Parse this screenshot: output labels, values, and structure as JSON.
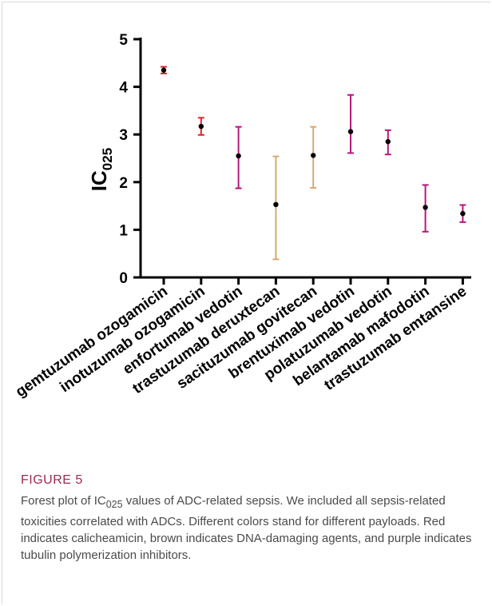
{
  "chart_data": {
    "type": "scatter",
    "ylabel_main": "IC",
    "ylabel_sub": "025",
    "ylim": [
      0,
      5
    ],
    "yticks": [
      "0",
      "1",
      "2",
      "3",
      "4",
      "5"
    ],
    "categories": [
      "gemtuzumab ozogamicin",
      "inotuzumab ozogamicin",
      "enfortumab vedotin",
      "trastuzumab deruxtecan",
      "sacituzumab govitecan",
      "brentuximab vedotin",
      "polatuzumab vedotin",
      "belantamab mafodotin",
      "trastuzumab emtansine"
    ],
    "points": [
      {
        "value": 4.35,
        "lower": 4.28,
        "upper": 4.42,
        "color": "#e0252d"
      },
      {
        "value": 3.17,
        "lower": 2.99,
        "upper": 3.35,
        "color": "#e0252d"
      },
      {
        "value": 2.55,
        "lower": 1.87,
        "upper": 3.16,
        "color": "#b4197a"
      },
      {
        "value": 1.53,
        "lower": 0.38,
        "upper": 2.54,
        "color": "#d9a872"
      },
      {
        "value": 2.56,
        "lower": 1.88,
        "upper": 3.16,
        "color": "#d9a872"
      },
      {
        "value": 3.06,
        "lower": 2.61,
        "upper": 3.83,
        "color": "#b4197a"
      },
      {
        "value": 2.85,
        "lower": 2.58,
        "upper": 3.09,
        "color": "#b4197a"
      },
      {
        "value": 1.47,
        "lower": 0.96,
        "upper": 1.94,
        "color": "#b4197a"
      },
      {
        "value": 1.34,
        "lower": 1.16,
        "upper": 1.52,
        "color": "#b4197a"
      }
    ],
    "grid": false,
    "legend": "none"
  },
  "caption": {
    "figure_label": "FIGURE 5",
    "text": "Forest plot of IC025 values of ADC-related sepsis. We included all sepsis-related toxicities correlated with ADCs. Different colors stand for different payloads. Red indicates calicheamicin, brown indicates DNA-damaging agents, and purple indicates tubulin polymerization inhibitors."
  }
}
